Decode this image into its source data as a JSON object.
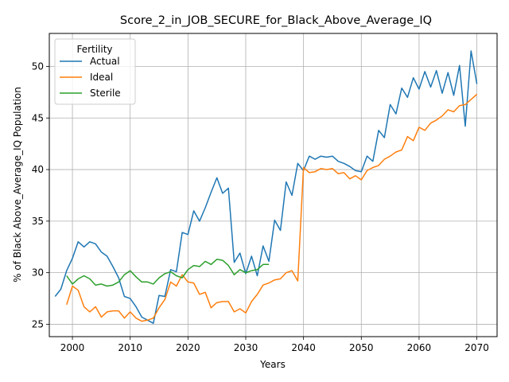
{
  "chart_data": {
    "type": "line",
    "title": "Score_2_in_JOB_SECURE_for_Black_Above_Average_IQ",
    "xlabel": "Years",
    "ylabel": "% of Black Above_Average_IQ Population",
    "xlim": [
      1996,
      2073.5
    ],
    "ylim": [
      23.8,
      53.2
    ],
    "xticks": [
      2000,
      2010,
      2020,
      2030,
      2040,
      2050,
      2060,
      2070
    ],
    "yticks": [
      25,
      30,
      35,
      40,
      45,
      50
    ],
    "grid": true,
    "legend": {
      "title": "Fertility",
      "position": "top-left"
    },
    "series": [
      {
        "name": "Actual",
        "color": "#1f77b4",
        "x": [
          1997,
          1998,
          1999,
          2000,
          2001,
          2002,
          2003,
          2004,
          2005,
          2006,
          2007,
          2008,
          2009,
          2010,
          2011,
          2012,
          2013,
          2014,
          2015,
          2016,
          2017,
          2018,
          2019,
          2020,
          2021,
          2022,
          2023,
          2024,
          2025,
          2026,
          2027,
          2028,
          2029,
          2030,
          2031,
          2032,
          2033,
          2034,
          2035,
          2036,
          2037,
          2038,
          2039,
          2040,
          2041,
          2042,
          2043,
          2044,
          2045,
          2046,
          2047,
          2048,
          2049,
          2050,
          2051,
          2052,
          2053,
          2054,
          2055,
          2056,
          2057,
          2058,
          2059,
          2060,
          2061,
          2062,
          2063,
          2064,
          2065,
          2066,
          2067,
          2068,
          2069,
          2070
        ],
        "y": [
          27.7,
          28.4,
          30.2,
          31.4,
          33.0,
          32.5,
          33.0,
          32.8,
          32.0,
          31.6,
          30.6,
          29.5,
          27.7,
          27.5,
          26.7,
          25.7,
          25.4,
          25.1,
          27.8,
          27.7,
          30.3,
          30.1,
          33.9,
          33.7,
          36.0,
          35.0,
          36.3,
          37.8,
          39.2,
          37.7,
          38.2,
          31.0,
          31.9,
          29.9,
          31.6,
          29.7,
          32.6,
          31.1,
          35.1,
          34.1,
          38.8,
          37.5,
          40.6,
          39.9,
          41.3,
          41.0,
          41.3,
          41.2,
          41.3,
          40.8,
          40.6,
          40.3,
          39.9,
          39.8,
          41.3,
          40.8,
          43.8,
          43.1,
          46.3,
          45.4,
          47.9,
          47.0,
          48.9,
          47.8,
          49.5,
          48.0,
          49.6,
          47.4,
          49.4,
          47.2,
          50.1,
          44.2,
          51.5,
          48.3
        ]
      },
      {
        "name": "Ideal",
        "color": "#ff7f0e",
        "x": [
          1999,
          2000,
          2001,
          2002,
          2003,
          2004,
          2005,
          2006,
          2007,
          2008,
          2009,
          2010,
          2011,
          2012,
          2013,
          2014,
          2015,
          2016,
          2017,
          2018,
          2019,
          2020,
          2021,
          2022,
          2023,
          2024,
          2025,
          2026,
          2027,
          2028,
          2029,
          2030,
          2031,
          2032,
          2033,
          2034,
          2035,
          2036,
          2037,
          2038,
          2039,
          2040,
          2041,
          2042,
          2043,
          2044,
          2045,
          2046,
          2047,
          2048,
          2049,
          2050,
          2051,
          2052,
          2053,
          2054,
          2055,
          2056,
          2057,
          2058,
          2059,
          2060,
          2061,
          2062,
          2063,
          2064,
          2065,
          2066,
          2067,
          2068,
          2069,
          2070
        ],
        "y": [
          26.9,
          28.7,
          28.3,
          26.7,
          26.2,
          26.7,
          25.7,
          26.2,
          26.3,
          26.3,
          25.6,
          26.2,
          25.6,
          25.3,
          25.4,
          25.6,
          26.6,
          27.4,
          29.1,
          28.7,
          29.8,
          29.1,
          29.0,
          27.9,
          28.1,
          26.6,
          27.1,
          27.2,
          27.2,
          26.2,
          26.5,
          26.1,
          27.2,
          27.9,
          28.8,
          29.0,
          29.3,
          29.4,
          30.0,
          30.2,
          29.2,
          40.2,
          39.7,
          39.8,
          40.1,
          40.0,
          40.1,
          39.6,
          39.7,
          39.1,
          39.4,
          39.0,
          39.9,
          40.2,
          40.4,
          41.0,
          41.3,
          41.7,
          41.9,
          43.2,
          42.8,
          44.1,
          43.8,
          44.5,
          44.8,
          45.2,
          45.8,
          45.6,
          46.2,
          46.3,
          46.8,
          47.3
        ]
      },
      {
        "name": "Sterile",
        "color": "#2ca02c",
        "x": [
          1999,
          2000,
          2001,
          2002,
          2003,
          2004,
          2005,
          2006,
          2007,
          2008,
          2009,
          2010,
          2011,
          2012,
          2013,
          2014,
          2015,
          2016,
          2017,
          2018,
          2019,
          2020,
          2021,
          2022,
          2023,
          2024,
          2025,
          2026,
          2027,
          2028,
          2029,
          2030,
          2031,
          2032,
          2033,
          2034
        ],
        "y": [
          29.7,
          28.9,
          29.4,
          29.7,
          29.4,
          28.8,
          28.9,
          28.7,
          28.8,
          29.1,
          29.8,
          30.2,
          29.6,
          29.1,
          29.1,
          28.9,
          29.5,
          29.9,
          30.1,
          29.7,
          29.5,
          30.3,
          30.7,
          30.6,
          31.1,
          30.8,
          31.3,
          31.2,
          30.7,
          29.8,
          30.3,
          30.0,
          30.2,
          30.3,
          30.8,
          30.8
        ]
      }
    ]
  }
}
